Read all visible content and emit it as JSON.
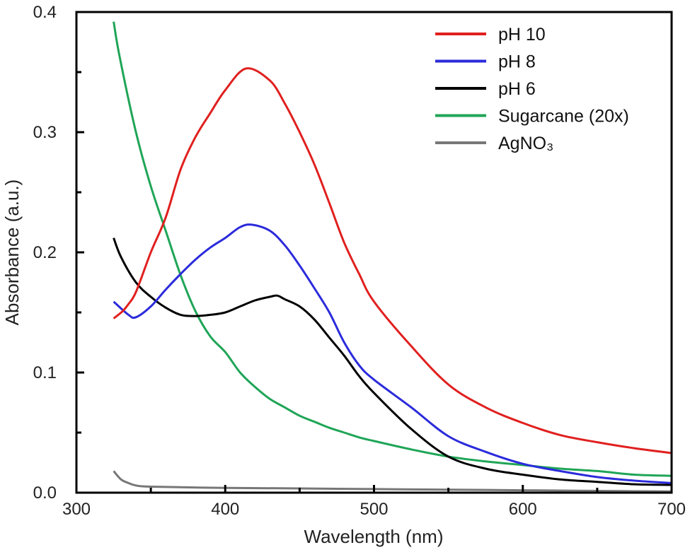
{
  "chart_data": {
    "type": "line",
    "title": "",
    "xlabel": "Wavelength (nm)",
    "ylabel": "Absorbance (a.u.)",
    "xlim": [
      300,
      700
    ],
    "ylim": [
      0.0,
      0.4
    ],
    "xticks": [
      300,
      400,
      500,
      600,
      700
    ],
    "xtick_labels": [
      "300",
      "400",
      "500",
      "600",
      "700"
    ],
    "yticks": [
      0.0,
      0.1,
      0.2,
      0.3,
      0.4
    ],
    "ytick_labels": [
      "0.0",
      "0.1",
      "0.2",
      "0.3",
      "0.4"
    ],
    "grid": false,
    "legend_position": "top-right",
    "series": [
      {
        "name": "pH 10",
        "color": "#e0201f",
        "x": [
          325,
          331,
          335,
          340,
          350,
          360,
          370,
          380,
          390,
          400,
          414,
          430,
          440,
          450,
          460,
          470,
          480,
          490,
          500,
          525,
          550,
          575,
          600,
          625,
          650,
          675,
          700
        ],
        "y": [
          0.145,
          0.151,
          0.157,
          0.167,
          0.2,
          0.229,
          0.269,
          0.296,
          0.316,
          0.335,
          0.353,
          0.343,
          0.324,
          0.3,
          0.273,
          0.241,
          0.208,
          0.182,
          0.159,
          0.122,
          0.09,
          0.071,
          0.058,
          0.048,
          0.042,
          0.037,
          0.033
        ]
      },
      {
        "name": "pH 8",
        "color": "#2b2bdc",
        "x": [
          325,
          335,
          340,
          350,
          360,
          370,
          380,
          390,
          400,
          410,
          418,
          430,
          440,
          450,
          460,
          470,
          480,
          490,
          500,
          525,
          550,
          575,
          600,
          625,
          650,
          675,
          700
        ],
        "y": [
          0.159,
          0.148,
          0.146,
          0.155,
          0.169,
          0.182,
          0.194,
          0.204,
          0.212,
          0.221,
          0.223,
          0.218,
          0.206,
          0.189,
          0.17,
          0.15,
          0.125,
          0.106,
          0.094,
          0.071,
          0.047,
          0.034,
          0.024,
          0.018,
          0.013,
          0.01,
          0.008
        ]
      },
      {
        "name": "pH 6",
        "color": "#000000",
        "x": [
          325,
          330,
          340,
          350,
          360,
          370,
          380,
          390,
          400,
          410,
          420,
          430,
          435,
          440,
          450,
          460,
          470,
          480,
          490,
          500,
          525,
          550,
          575,
          600,
          625,
          650,
          675,
          700
        ],
        "y": [
          0.212,
          0.196,
          0.175,
          0.163,
          0.154,
          0.148,
          0.147,
          0.148,
          0.15,
          0.155,
          0.16,
          0.163,
          0.164,
          0.161,
          0.155,
          0.144,
          0.129,
          0.114,
          0.097,
          0.083,
          0.053,
          0.03,
          0.02,
          0.015,
          0.011,
          0.009,
          0.007,
          0.0065
        ]
      },
      {
        "name": "Sugarcane (20x)",
        "color": "#1fa557",
        "x": [
          325,
          329,
          340,
          350,
          360,
          370,
          380,
          390,
          400,
          410,
          420,
          430,
          440,
          450,
          460,
          470,
          480,
          490,
          500,
          525,
          550,
          575,
          600,
          625,
          650,
          675,
          700
        ],
        "y": [
          0.392,
          0.363,
          0.3,
          0.255,
          0.218,
          0.181,
          0.151,
          0.13,
          0.117,
          0.1,
          0.088,
          0.078,
          0.071,
          0.064,
          0.059,
          0.054,
          0.05,
          0.046,
          0.043,
          0.036,
          0.03,
          0.026,
          0.023,
          0.02,
          0.018,
          0.015,
          0.014
        ]
      },
      {
        "name": "AgNO₃",
        "color": "#777777",
        "x": [
          325,
          330,
          335,
          340,
          350,
          400,
          450,
          500,
          550,
          600,
          650,
          700
        ],
        "y": [
          0.018,
          0.011,
          0.008,
          0.006,
          0.005,
          0.004,
          0.0035,
          0.003,
          0.0025,
          0.002,
          0.0015,
          0.001
        ]
      }
    ]
  }
}
